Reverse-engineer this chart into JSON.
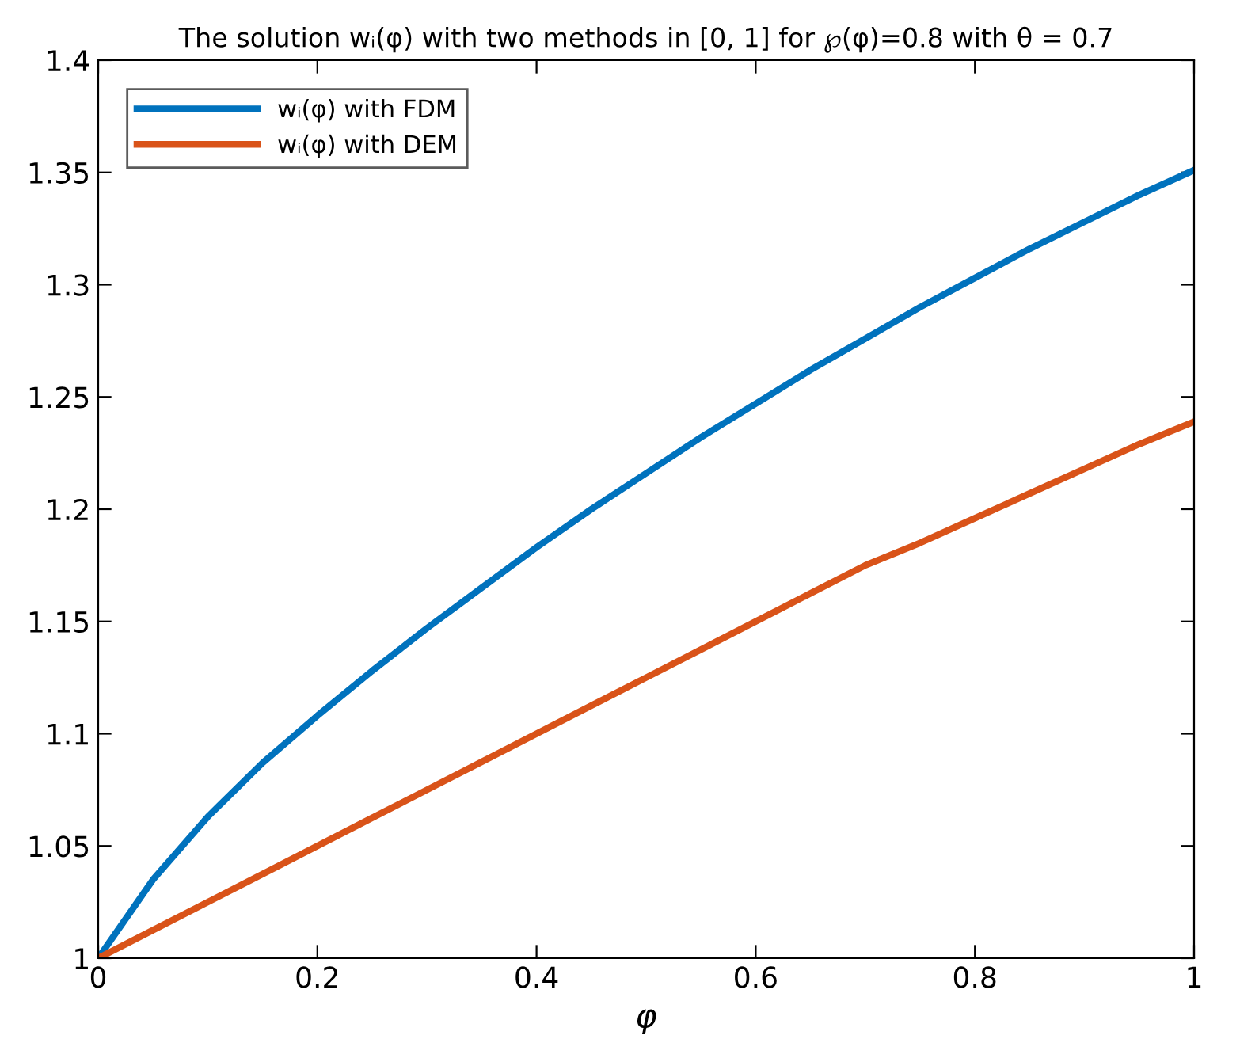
{
  "chart_data": {
    "type": "line",
    "title": "The solution wᵢ(φ) with two methods in [0, 1] for ℘(φ)=0.8 with θ = 0.7",
    "xlabel": "φ",
    "x": [
      0,
      0.05,
      0.1,
      0.15,
      0.2,
      0.25,
      0.3,
      0.35,
      0.4,
      0.45,
      0.5,
      0.55,
      0.6,
      0.65,
      0.7,
      0.75,
      0.8,
      0.85,
      0.9,
      0.95,
      1.0
    ],
    "series": [
      {
        "name": "wᵢ(φ) with FDM",
        "color": "#0072bd",
        "values": [
          1.0,
          1.035,
          1.063,
          1.087,
          1.108,
          1.128,
          1.147,
          1.165,
          1.183,
          1.2,
          1.216,
          1.232,
          1.247,
          1.262,
          1.276,
          1.29,
          1.303,
          1.316,
          1.328,
          1.34,
          1.351
        ]
      },
      {
        "name": "wᵢ(φ) with DEM",
        "color": "#d95319",
        "values": [
          1.0,
          1.0125,
          1.025,
          1.0375,
          1.05,
          1.0625,
          1.075,
          1.0875,
          1.1,
          1.1125,
          1.125,
          1.1375,
          1.15,
          1.1625,
          1.175,
          1.185,
          1.196,
          1.207,
          1.218,
          1.229,
          1.239
        ]
      }
    ],
    "xlim": [
      0,
      1
    ],
    "ylim": [
      1,
      1.4
    ],
    "xticks": [
      0,
      0.2,
      0.4,
      0.6,
      0.8,
      1
    ],
    "yticks": [
      1,
      1.05,
      1.1,
      1.15,
      1.2,
      1.25,
      1.3,
      1.35,
      1.4
    ],
    "grid": false,
    "legend": "top left",
    "marker": "none",
    "line_style": "solid"
  }
}
